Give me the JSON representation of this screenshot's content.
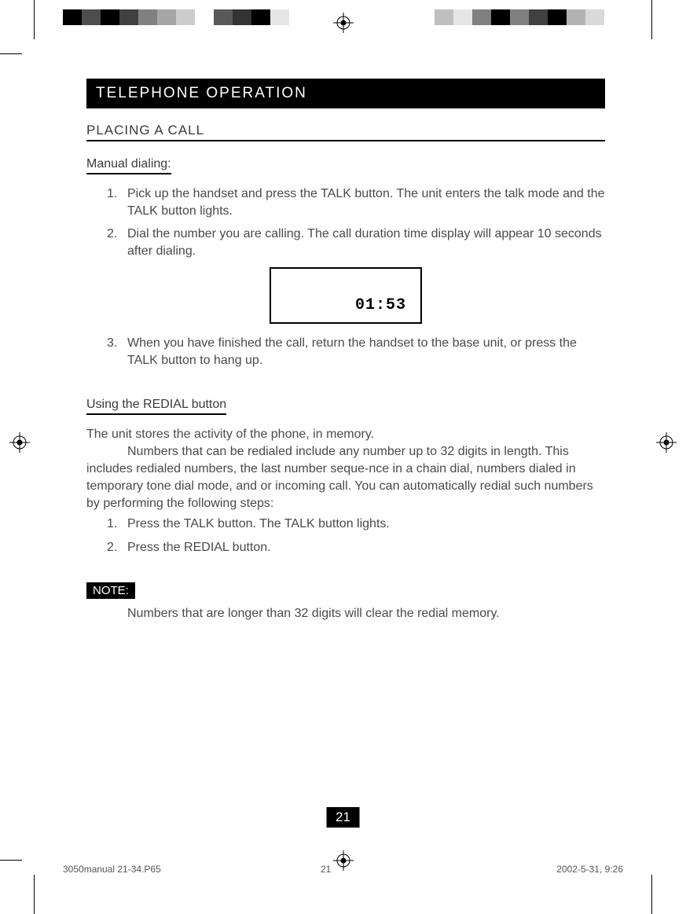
{
  "color_bars": {
    "left": [
      "#000000",
      "#4d4d4d",
      "#000000",
      "#404040",
      "#808080",
      "#a6a6a6",
      "#cccccc",
      "#ffffff",
      "#595959",
      "#333333",
      "#000000",
      "#e6e6e6"
    ],
    "right": [
      "#bfbfbf",
      "#e6e6e6",
      "#808080",
      "#000000",
      "#808080",
      "#404040",
      "#000000",
      "#b3b3b3",
      "#d9d9d9",
      "#ffffff"
    ]
  },
  "title": "TELEPHONE OPERATION",
  "section_placing": "PLACING A CALL",
  "subsection_manual": "Manual dialing:",
  "manual_steps": [
    {
      "n": "1.",
      "t": "Pick up the handset and press the TALK button. The unit enters the talk mode and the TALK button lights."
    },
    {
      "n": "2.",
      "t": "Dial the number you are calling. The call duration time display will appear 10 seconds after dialing."
    },
    {
      "n": "3.",
      "t": "When you have finished the call,  return the handset to the base unit, or press the TALK button to hang up."
    }
  ],
  "display_value": "01:53",
  "subsection_redial": "Using the REDIAL button",
  "redial_intro_line1": "The unit stores the activity of the phone, in memory.",
  "redial_intro_line2": "Numbers that can be redialed include any number up to 32 digits in length. This includes redialed numbers, the last number seque-nce in a chain dial, numbers dialed in temporary tone dial mode, and or incoming call. You can automatically redial such numbers by performing the following steps:",
  "redial_steps": [
    {
      "n": "1.",
      "t": "Press the TALK button. The TALK button lights."
    },
    {
      "n": "2.",
      "t": "Press the REDIAL button."
    }
  ],
  "note_label": "NOTE:",
  "note_text": "Numbers that are longer than 32 digits will clear the redial memory.",
  "page_number": "21",
  "footer_file": "3050manual 21-34.P65",
  "footer_page": "21",
  "footer_date": "2002-5-31, 9:26"
}
